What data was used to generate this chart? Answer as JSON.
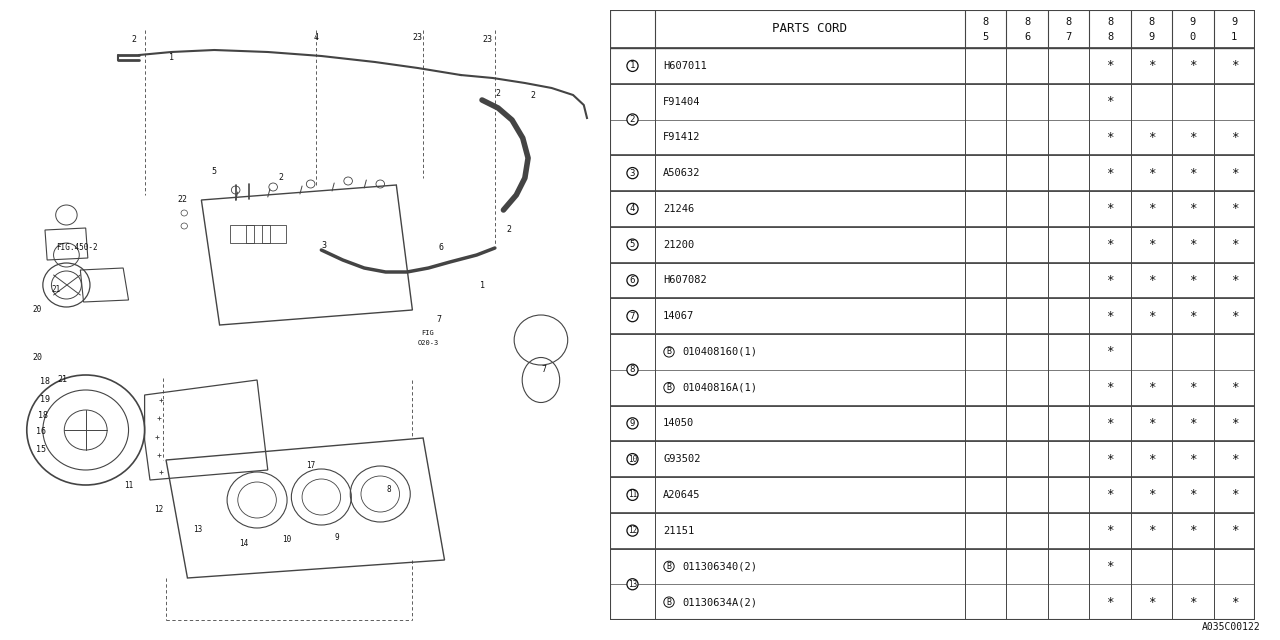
{
  "watermark": "A035C00122",
  "bg_color": "#ffffff",
  "table_header": "PARTS CORD",
  "year_cols": [
    "85",
    "86",
    "87",
    "88",
    "89",
    "90",
    "91"
  ],
  "rows": [
    {
      "b_prefix": false,
      "part": "H607011",
      "stars": [
        false,
        false,
        false,
        true,
        true,
        true,
        true
      ]
    },
    {
      "b_prefix": false,
      "part": "F91404",
      "stars": [
        false,
        false,
        false,
        true,
        false,
        false,
        false
      ]
    },
    {
      "b_prefix": false,
      "part": "F91412",
      "stars": [
        false,
        false,
        false,
        true,
        true,
        true,
        true
      ]
    },
    {
      "b_prefix": false,
      "part": "A50632",
      "stars": [
        false,
        false,
        false,
        true,
        true,
        true,
        true
      ]
    },
    {
      "b_prefix": false,
      "part": "21246",
      "stars": [
        false,
        false,
        false,
        true,
        true,
        true,
        true
      ]
    },
    {
      "b_prefix": false,
      "part": "21200",
      "stars": [
        false,
        false,
        false,
        true,
        true,
        true,
        true
      ]
    },
    {
      "b_prefix": false,
      "part": "H607082",
      "stars": [
        false,
        false,
        false,
        true,
        true,
        true,
        true
      ]
    },
    {
      "b_prefix": false,
      "part": "14067",
      "stars": [
        false,
        false,
        false,
        true,
        true,
        true,
        true
      ]
    },
    {
      "b_prefix": true,
      "part": "010408160(1)",
      "stars": [
        false,
        false,
        false,
        true,
        false,
        false,
        false
      ]
    },
    {
      "b_prefix": true,
      "part": "01040816A(1)",
      "stars": [
        false,
        false,
        false,
        true,
        true,
        true,
        true
      ]
    },
    {
      "b_prefix": false,
      "part": "14050",
      "stars": [
        false,
        false,
        false,
        true,
        true,
        true,
        true
      ]
    },
    {
      "b_prefix": false,
      "part": "G93502",
      "stars": [
        false,
        false,
        false,
        true,
        true,
        true,
        true
      ]
    },
    {
      "b_prefix": false,
      "part": "A20645",
      "stars": [
        false,
        false,
        false,
        true,
        true,
        true,
        true
      ]
    },
    {
      "b_prefix": false,
      "part": "21151",
      "stars": [
        false,
        false,
        false,
        true,
        true,
        true,
        true
      ]
    },
    {
      "b_prefix": true,
      "part": "011306340(2)",
      "stars": [
        false,
        false,
        false,
        true,
        false,
        false,
        false
      ]
    },
    {
      "b_prefix": true,
      "part": "01130634A(2)",
      "stars": [
        false,
        false,
        false,
        true,
        true,
        true,
        true
      ]
    }
  ],
  "row_groups": [
    {
      "label": "1",
      "rows": [
        0
      ]
    },
    {
      "label": "2",
      "rows": [
        1,
        2
      ]
    },
    {
      "label": "3",
      "rows": [
        3
      ]
    },
    {
      "label": "4",
      "rows": [
        4
      ]
    },
    {
      "label": "5",
      "rows": [
        5
      ]
    },
    {
      "label": "6",
      "rows": [
        6
      ]
    },
    {
      "label": "7",
      "rows": [
        7
      ]
    },
    {
      "label": "8",
      "rows": [
        8,
        9
      ]
    },
    {
      "label": "9",
      "rows": [
        10
      ]
    },
    {
      "label": "10",
      "rows": [
        11
      ]
    },
    {
      "label": "11",
      "rows": [
        12
      ]
    },
    {
      "label": "12",
      "rows": [
        13
      ]
    },
    {
      "label": "13",
      "rows": [
        14,
        15
      ]
    }
  ],
  "line_color": "#444444",
  "text_color": "#111111"
}
